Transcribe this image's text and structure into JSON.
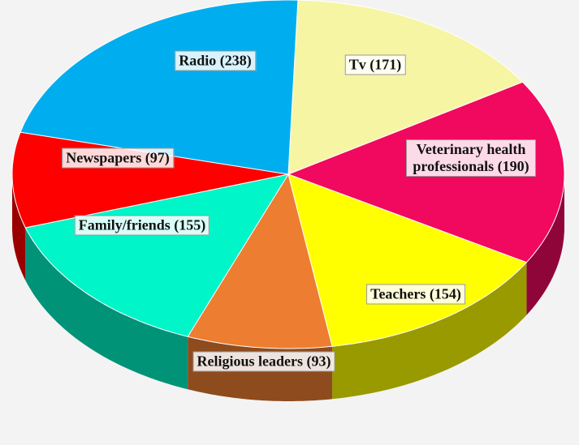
{
  "chart_data": {
    "type": "pie",
    "categories": [
      "Tv (171)",
      "Veterinary health professionals (190)",
      "Teachers (154)",
      "Religious leaders (93)",
      "Family/friends (155)",
      "Newspapers (97)",
      "Radio (238)"
    ],
    "values": [
      171,
      190,
      154,
      93,
      155,
      97,
      238
    ],
    "colors": [
      "#f6f5a4",
      "#f0095f",
      "#ffff00",
      "#ed7d31",
      "#00f5c8",
      "#ff0000",
      "#00aeef"
    ]
  }
}
